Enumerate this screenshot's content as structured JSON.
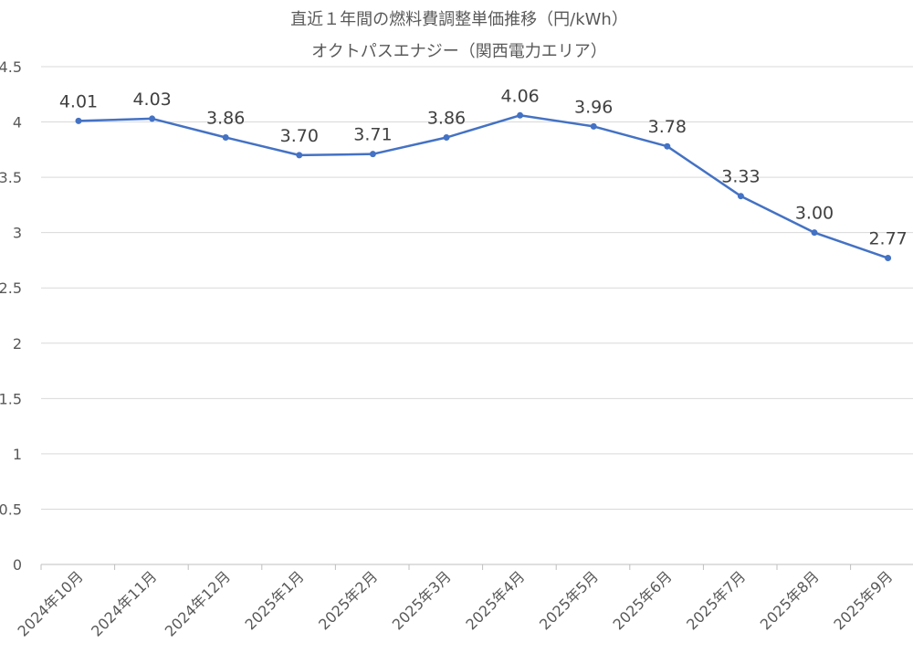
{
  "chart_data": {
    "type": "line",
    "title": "直近１年間の燃料費調整単価推移（円/kWh）",
    "subtitle": "オクトパスエナジー（関西電力エリア）",
    "xlabel": "",
    "ylabel": "",
    "ylim": [
      0,
      4.5
    ],
    "yticks": [
      "0",
      "0.5",
      "1",
      "1.5",
      "2",
      "2.5",
      "3",
      "3.5",
      "4",
      "4.5"
    ],
    "categories": [
      "2024年10月",
      "2024年11月",
      "2024年12月",
      "2025年1月",
      "2025年2月",
      "2025年3月",
      "2025年4月",
      "2025年5月",
      "2025年6月",
      "2025年7月",
      "2025年8月",
      "2025年9月"
    ],
    "series": [
      {
        "values": [
          4.01,
          4.03,
          3.86,
          3.7,
          3.71,
          3.86,
          4.06,
          3.96,
          3.78,
          3.33,
          3.0,
          2.77
        ],
        "labels": [
          "4.01",
          "4.03",
          "3.86",
          "3.70",
          "3.71",
          "3.86",
          "4.06",
          "3.96",
          "3.78",
          "3.33",
          "3.00",
          "2.77"
        ],
        "color": "#4472c4"
      }
    ],
    "grid": true,
    "legend": "none"
  }
}
